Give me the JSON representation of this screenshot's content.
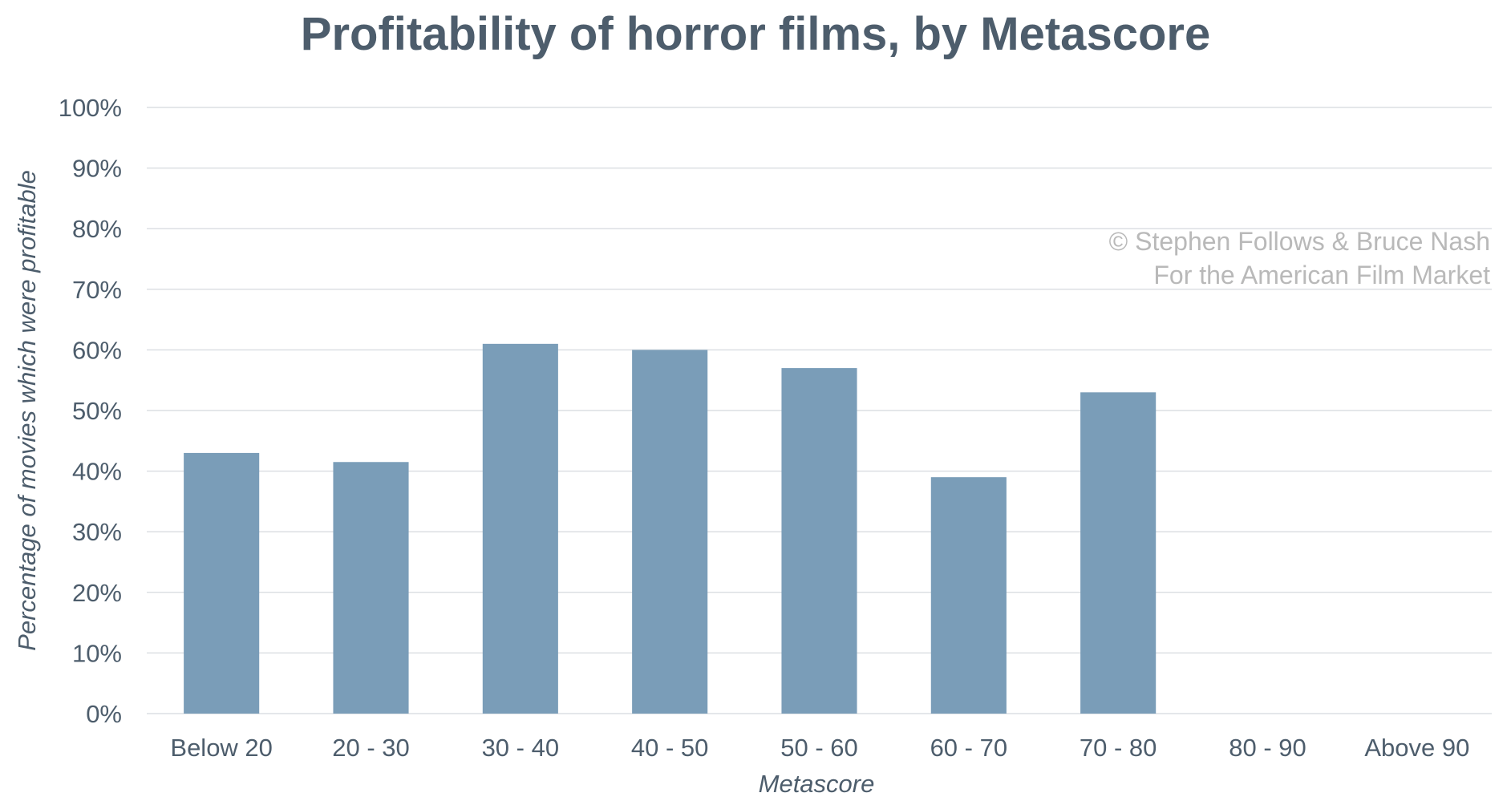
{
  "chart_data": {
    "type": "bar",
    "title": "Profitability of horror films, by Metascore",
    "xlabel": "Metascore",
    "ylabel": "Percentage of movies which were profitable",
    "categories": [
      "Below 20",
      "20 - 30",
      "30 - 40",
      "40 - 50",
      "50 - 60",
      "60 - 70",
      "70 - 80",
      "80 - 90",
      "Above 90"
    ],
    "values": [
      43,
      41.5,
      61,
      60,
      57,
      39,
      53,
      0,
      0
    ],
    "ylim": [
      0,
      100
    ],
    "yticks": [
      "0%",
      "10%",
      "20%",
      "30%",
      "40%",
      "50%",
      "60%",
      "70%",
      "80%",
      "90%",
      "100%"
    ],
    "grid": true,
    "bar_color": "#7a9db8"
  },
  "watermark": {
    "line1": "© Stephen Follows & Bruce Nash",
    "line2": "For the American Film Market"
  }
}
